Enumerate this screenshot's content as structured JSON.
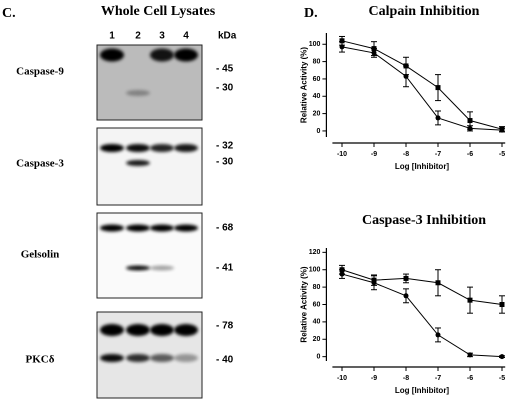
{
  "panel_c": {
    "label": "C.",
    "title": "Whole Cell Lysates",
    "lanes": [
      "1",
      "2",
      "3",
      "4"
    ],
    "unit": "kDa",
    "blots": [
      {
        "name": "Caspase-9",
        "markers": [
          "- 45",
          "- 30"
        ]
      },
      {
        "name": "Caspase-3",
        "markers": [
          "- 32",
          "- 30"
        ]
      },
      {
        "name": "Gelsolin",
        "markers": [
          "- 68",
          "- 41"
        ]
      },
      {
        "name": "PKCδ",
        "markers": [
          "- 78",
          "- 40"
        ]
      }
    ]
  },
  "panel_d": {
    "label": "D."
  },
  "chart_data": [
    {
      "type": "line",
      "title": "Calpain Inhibition",
      "x_label": "Log [Inhibitor]",
      "y_label": "Relative Activity (%)",
      "x": [
        -10,
        -9,
        -8,
        -7,
        -6,
        -5
      ],
      "xlim": [
        -10.3,
        -4.9
      ],
      "xticks": [
        -10,
        -9,
        -8,
        -7,
        -6,
        -5
      ],
      "ylim": [
        -7,
        113
      ],
      "yticks": [
        0,
        20,
        40,
        60,
        80,
        100
      ],
      "series": [
        {
          "marker": "square",
          "color": "#000000",
          "values": [
            104,
            95,
            75,
            50,
            12,
            2
          ],
          "errors": [
            5,
            8,
            10,
            15,
            10,
            3
          ]
        },
        {
          "marker": "circle",
          "color": "#000000",
          "values": [
            97,
            90,
            63,
            15,
            3,
            1
          ],
          "errors": [
            6,
            5,
            12,
            8,
            3,
            2
          ]
        }
      ]
    },
    {
      "type": "line",
      "title": "Caspase-3 Inhibition",
      "x_label": "Log [Inhibitor]",
      "y_label": "Relative Activity (%)",
      "x": [
        -10,
        -9,
        -8,
        -7,
        -6,
        -5
      ],
      "xlim": [
        -10.3,
        -4.9
      ],
      "xticks": [
        -10,
        -9,
        -8,
        -7,
        -6,
        -5
      ],
      "ylim": [
        -5,
        125
      ],
      "yticks": [
        0,
        20,
        40,
        60,
        80,
        100,
        120
      ],
      "series": [
        {
          "marker": "square",
          "color": "#000000",
          "values": [
            100,
            88,
            90,
            85,
            65,
            60
          ],
          "errors": [
            5,
            6,
            5,
            15,
            15,
            10
          ]
        },
        {
          "marker": "circle",
          "color": "#000000",
          "values": [
            95,
            85,
            70,
            25,
            2,
            0
          ],
          "errors": [
            5,
            8,
            8,
            8,
            2,
            1
          ]
        }
      ]
    }
  ]
}
